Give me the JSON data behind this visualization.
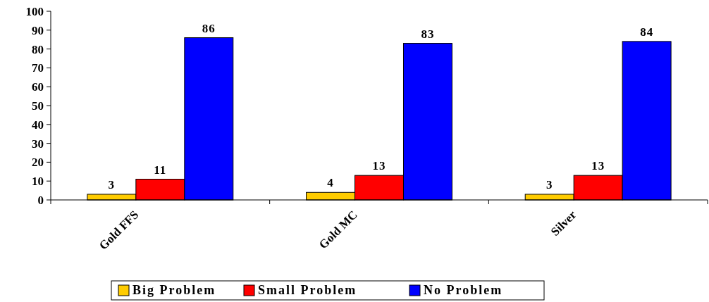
{
  "chart_data": {
    "type": "bar",
    "categories": [
      "Gold FFS",
      "Gold MC",
      "Silver"
    ],
    "series": [
      {
        "name": "Big Problem",
        "color": "#ffcc00",
        "values": [
          3,
          4,
          3
        ]
      },
      {
        "name": "Small Problem",
        "color": "#ff0000",
        "values": [
          11,
          13,
          13
        ]
      },
      {
        "name": "No Problem",
        "color": "#0000ff",
        "values": [
          86,
          83,
          84
        ]
      }
    ],
    "ylim": [
      0,
      100
    ],
    "yticks": [
      0,
      10,
      20,
      30,
      40,
      50,
      60,
      70,
      80,
      90,
      100
    ],
    "data_labels": true,
    "grid": false,
    "legend": "bottom"
  }
}
